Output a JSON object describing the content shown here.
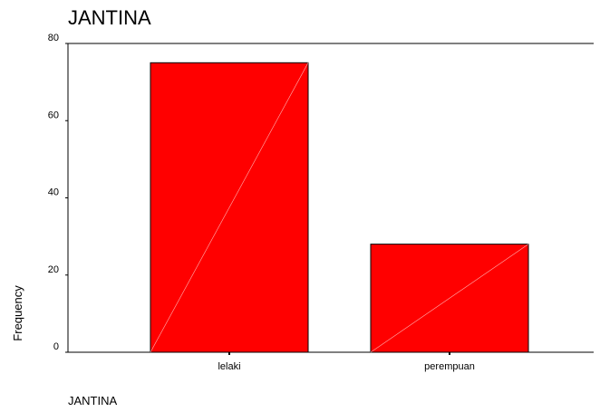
{
  "chart_data": {
    "type": "bar",
    "title": "JANTINA",
    "xlabel": "JANTINA",
    "ylabel": "Frequency",
    "categories": [
      "lelaki",
      "perempuan"
    ],
    "values": [
      75,
      28
    ],
    "ylim": [
      0,
      80
    ],
    "yticks": [
      0,
      20,
      40,
      60,
      80
    ],
    "bar_color": "#ff0000",
    "grid": false
  }
}
